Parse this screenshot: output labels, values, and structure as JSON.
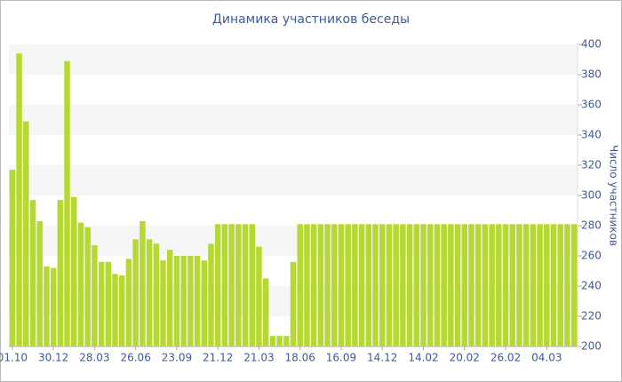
{
  "chart_data": {
    "type": "bar",
    "title": "Динамика участников беседы",
    "y_axis_label": "Число участников",
    "categories": [
      "01.10",
      null,
      null,
      null,
      null,
      null,
      "30.12",
      null,
      null,
      null,
      null,
      null,
      "28.03",
      null,
      null,
      null,
      null,
      null,
      "26.06",
      null,
      null,
      null,
      null,
      null,
      "23.09",
      null,
      null,
      null,
      null,
      null,
      "21.12",
      null,
      null,
      null,
      null,
      null,
      "21.03",
      null,
      null,
      null,
      null,
      null,
      "18.06",
      null,
      null,
      null,
      null,
      null,
      "16.09",
      null,
      null,
      null,
      null,
      null,
      "14.12",
      null,
      null,
      null,
      null,
      null,
      "14.02",
      null,
      null,
      null,
      null,
      null,
      "20.02",
      null,
      null,
      null,
      null,
      null,
      "26.02",
      null,
      null,
      null,
      null,
      null,
      "04.03",
      null,
      null,
      null,
      null
    ],
    "values": [
      317,
      394,
      349,
      297,
      283,
      253,
      252,
      297,
      389,
      299,
      282,
      279,
      267,
      256,
      256,
      248,
      247,
      258,
      271,
      283,
      271,
      268,
      257,
      264,
      260,
      260,
      260,
      260,
      257,
      268,
      281,
      281,
      281,
      281,
      281,
      281,
      266,
      245,
      207,
      207,
      207,
      256,
      281,
      281,
      281,
      281,
      281,
      281,
      281,
      281,
      281,
      281,
      281,
      281,
      281,
      281,
      281,
      281,
      281,
      281,
      281,
      281,
      281,
      281,
      281,
      281,
      281,
      281,
      281,
      281,
      281,
      281,
      281,
      281,
      281,
      281,
      281,
      281,
      281,
      281,
      281,
      281,
      281
    ],
    "color": "#b5d930",
    "ylim": [
      200,
      400
    ],
    "yticks": [
      200,
      220,
      240,
      260,
      280,
      300,
      320,
      340,
      360,
      380,
      400
    ],
    "grid": true
  }
}
